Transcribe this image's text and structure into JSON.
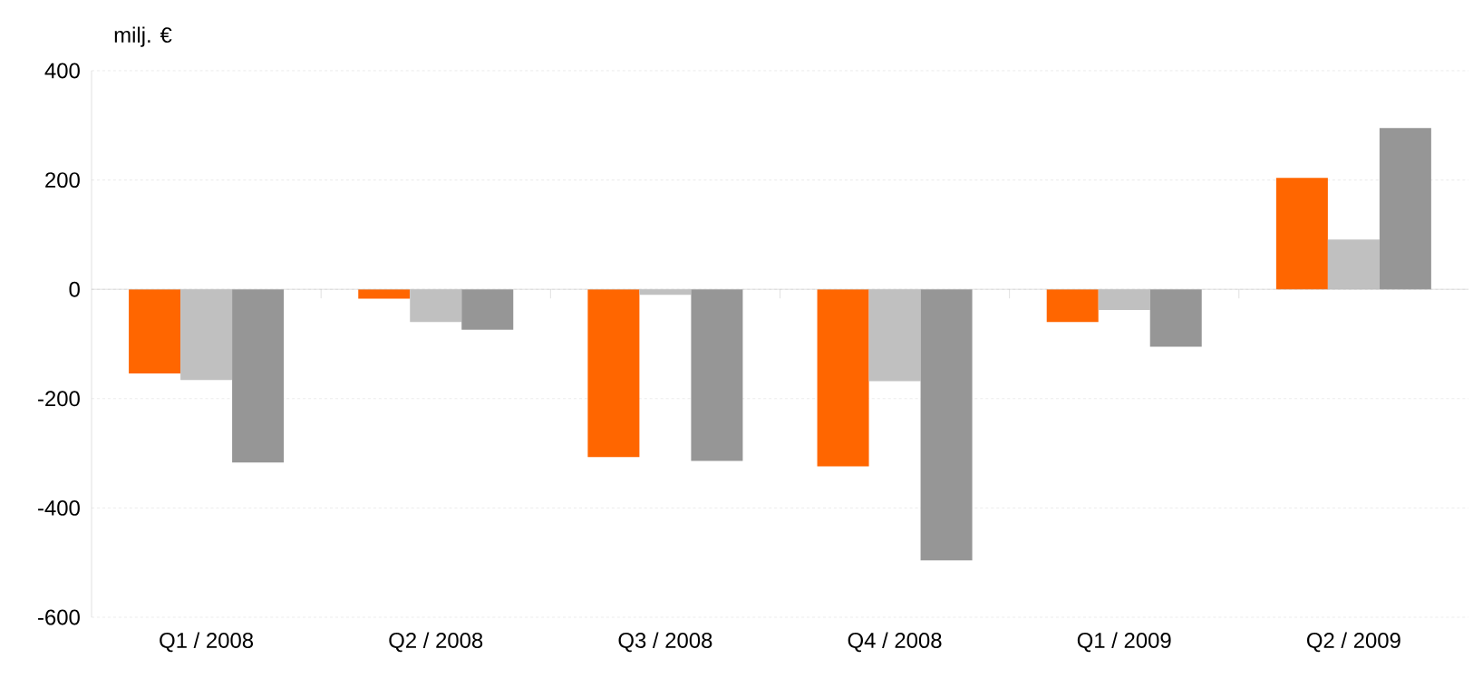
{
  "chart_data": {
    "type": "bar",
    "ylabel": "milj. €",
    "categories": [
      "Q1 / 2008",
      "Q2 / 2008",
      "Q3 / 2008",
      "Q4 / 2008",
      "Q1 / 2009",
      "Q2 / 2009"
    ],
    "series": [
      {
        "color": "#ff6600",
        "values": [
          -154,
          -17,
          -307,
          -324,
          -60,
          204
        ]
      },
      {
        "color": "#c0c0c0",
        "values": [
          -166,
          -60,
          -10,
          -168,
          -38,
          91
        ]
      },
      {
        "color": "#969696",
        "values": [
          -317,
          -74,
          -314,
          -496,
          -105,
          295
        ]
      }
    ],
    "ylim": [
      -600,
      400
    ],
    "yticks": [
      -600,
      -400,
      -200,
      0,
      200,
      400
    ],
    "grid": "y"
  }
}
